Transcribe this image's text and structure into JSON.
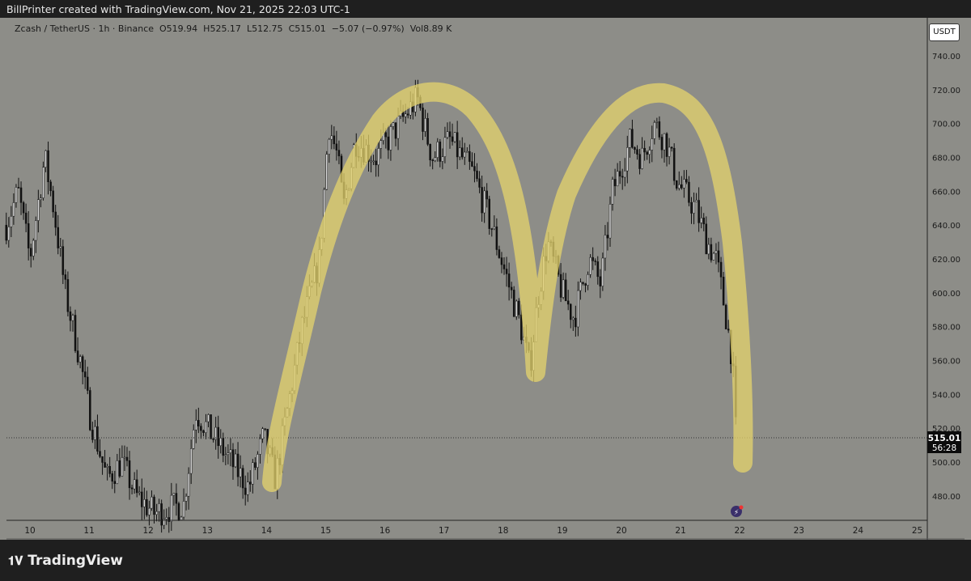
{
  "header": {
    "credit": "BillPrinter created with TradingView.com, Nov 21, 2025 22:03 UTC-1"
  },
  "legend": {
    "symbol": "Zcash / TetherUS · 1h · Binance",
    "open": "O519.94",
    "high": "H525.17",
    "low": "L512.75",
    "close": "C515.01",
    "change": "−5.07 (−0.97%)",
    "volume": "Vol8.89 K"
  },
  "currency_button": "USDT",
  "brand": "TradingView",
  "chart_data": {
    "type": "candlestick",
    "interval": "1h",
    "ylim": [
      465,
      750
    ],
    "y_ticks": [
      480,
      500,
      520,
      540,
      560,
      580,
      600,
      620,
      640,
      660,
      680,
      700,
      720,
      740
    ],
    "y_tick_labels": [
      "480.00",
      "500.00",
      "520.00",
      "540.00",
      "560.00",
      "580.00",
      "600.00",
      "620.00",
      "640.00",
      "660.00",
      "680.00",
      "700.00",
      "720.00",
      "740.00"
    ],
    "x_ticks": [
      "10",
      "11",
      "12",
      "13",
      "14",
      "15",
      "16",
      "17",
      "18",
      "19",
      "20",
      "21",
      "22",
      "23",
      "24",
      "25"
    ],
    "last_price": "515.01",
    "countdown": "56:28",
    "approx_close_path_day_price": [
      [
        9.6,
        640
      ],
      [
        9.8,
        660
      ],
      [
        10.0,
        620
      ],
      [
        10.25,
        680
      ],
      [
        10.4,
        650
      ],
      [
        10.6,
        600
      ],
      [
        10.85,
        560
      ],
      [
        11.0,
        530
      ],
      [
        11.3,
        490
      ],
      [
        11.55,
        500
      ],
      [
        11.8,
        480
      ],
      [
        12.1,
        470
      ],
      [
        12.6,
        475
      ],
      [
        12.8,
        530
      ],
      [
        13.0,
        520
      ],
      [
        13.4,
        500
      ],
      [
        13.7,
        485
      ],
      [
        13.95,
        515
      ],
      [
        14.15,
        490
      ],
      [
        14.35,
        530
      ],
      [
        14.6,
        580
      ],
      [
        14.9,
        620
      ],
      [
        15.05,
        700
      ],
      [
        15.2,
        680
      ],
      [
        15.3,
        650
      ],
      [
        15.5,
        690
      ],
      [
        15.85,
        680
      ],
      [
        16.25,
        700
      ],
      [
        16.55,
        715
      ],
      [
        16.8,
        680
      ],
      [
        17.1,
        690
      ],
      [
        17.5,
        670
      ],
      [
        17.8,
        640
      ],
      [
        18.05,
        610
      ],
      [
        18.3,
        580
      ],
      [
        18.45,
        555
      ],
      [
        18.6,
        600
      ],
      [
        18.75,
        630
      ],
      [
        19.0,
        600
      ],
      [
        19.2,
        585
      ],
      [
        19.45,
        620
      ],
      [
        19.65,
        605
      ],
      [
        19.85,
        660
      ],
      [
        20.15,
        690
      ],
      [
        20.35,
        680
      ],
      [
        20.55,
        700
      ],
      [
        20.75,
        690
      ],
      [
        20.95,
        665
      ],
      [
        21.25,
        650
      ],
      [
        21.45,
        630
      ],
      [
        21.6,
        620
      ],
      [
        21.75,
        590
      ],
      [
        21.88,
        560
      ],
      [
        21.92,
        520
      ],
      [
        21.97,
        515
      ]
    ]
  }
}
